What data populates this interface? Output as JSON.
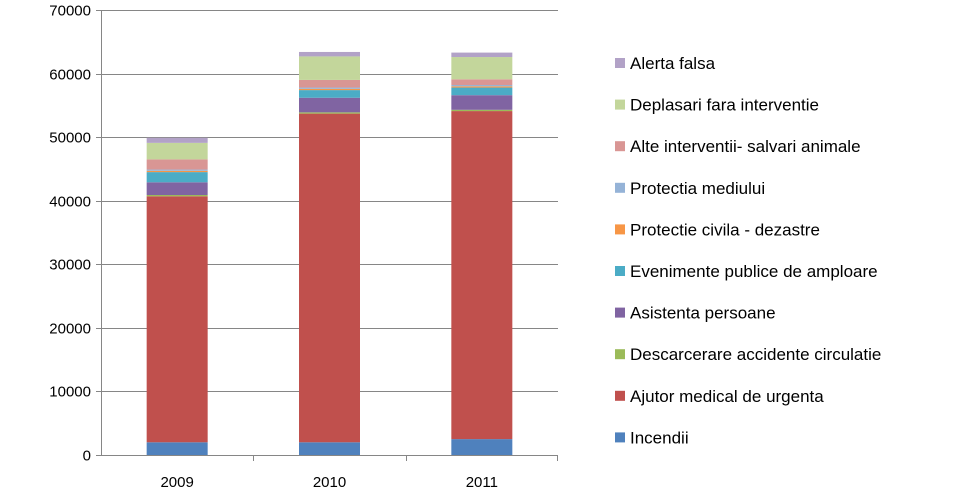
{
  "chart_data": {
    "type": "bar",
    "stacked": true,
    "categories": [
      "2009",
      "2010",
      "2011"
    ],
    "ylim": [
      0,
      70000
    ],
    "yticks": [
      0,
      10000,
      20000,
      30000,
      40000,
      50000,
      60000,
      70000
    ],
    "ytick_labels": [
      "0",
      "10000",
      "20000",
      "30000",
      "40000",
      "50000",
      "60000",
      "70000"
    ],
    "grid": true,
    "legend_position": "right",
    "series": [
      {
        "name": "Incendii",
        "color": "#4F81BD",
        "values": [
          2000,
          2000,
          2500
        ]
      },
      {
        "name": "Ajutor medical de urgenta",
        "color": "#C0504D",
        "values": [
          38700,
          51700,
          51600
        ]
      },
      {
        "name": "Descarcerare accidente circulatie",
        "color": "#9BBB59",
        "values": [
          200,
          200,
          200
        ]
      },
      {
        "name": "Asistenta persoane",
        "color": "#8064A2",
        "values": [
          2000,
          2300,
          2300
        ]
      },
      {
        "name": "Evenimente publice de amploare",
        "color": "#4BACC6",
        "values": [
          1600,
          1200,
          1200
        ]
      },
      {
        "name": "Protectie civila - dezastre",
        "color": "#F79646",
        "values": [
          200,
          200,
          200
        ]
      },
      {
        "name": "Protectia mediului",
        "color": "#95B3D7",
        "values": [
          200,
          200,
          200
        ]
      },
      {
        "name": "Alte interventii- salvari animale",
        "color": "#D99694",
        "values": [
          1600,
          1200,
          900
        ]
      },
      {
        "name": "Deplasari fara interventie",
        "color": "#C3D69B",
        "values": [
          2600,
          3700,
          3500
        ]
      },
      {
        "name": "Alerta falsa",
        "color": "#B2A2C7",
        "values": [
          800,
          700,
          700
        ]
      }
    ]
  }
}
